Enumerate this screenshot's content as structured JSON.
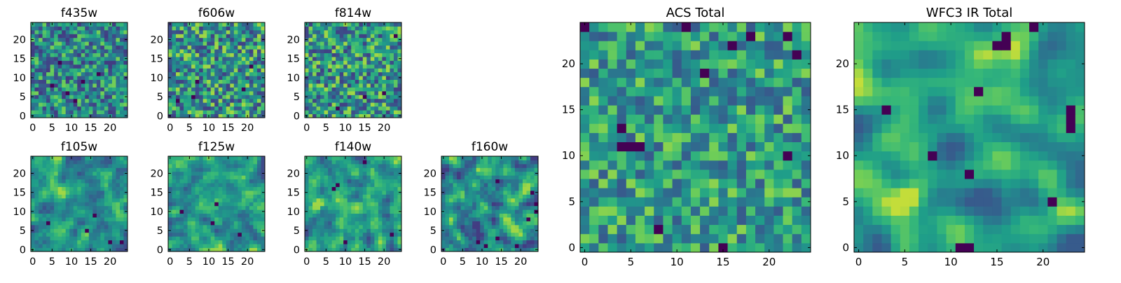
{
  "figure": {
    "colormap": "viridis",
    "background": "#ffffff",
    "axis_color": "#000000"
  },
  "chart_data": [
    {
      "type": "heatmap",
      "title": "f435w",
      "xlim": [
        -0.5,
        24.5
      ],
      "ylim": [
        -0.5,
        24.5
      ],
      "xticks": [
        0,
        5,
        10,
        15,
        20
      ],
      "yticks": [
        0,
        5,
        10,
        15,
        20
      ],
      "grid": false,
      "grid_size": 25,
      "seed": 11,
      "smoothing": 0,
      "contrast": 1.1,
      "lo": 0.2,
      "hi": 0.88,
      "dark_spots": [
        [
          11,
          4
        ],
        [
          9,
          6
        ],
        [
          5,
          8
        ],
        [
          13,
          9
        ],
        [
          7,
          14
        ],
        [
          17,
          11
        ]
      ]
    },
    {
      "type": "heatmap",
      "title": "f606w",
      "xlim": [
        -0.5,
        24.5
      ],
      "ylim": [
        -0.5,
        24.5
      ],
      "xticks": [
        0,
        5,
        10,
        15,
        20
      ],
      "yticks": [
        0,
        5,
        10,
        15,
        20
      ],
      "grid": false,
      "grid_size": 25,
      "seed": 23,
      "smoothing": 0,
      "contrast": 1.15,
      "lo": 0.22,
      "hi": 0.92,
      "dark_spots": [
        [
          6,
          5
        ],
        [
          7,
          9
        ],
        [
          2,
          4
        ],
        [
          19,
          7
        ],
        [
          21,
          13
        ]
      ]
    },
    {
      "type": "heatmap",
      "title": "f814w",
      "xlim": [
        -0.5,
        24.5
      ],
      "ylim": [
        -0.5,
        24.5
      ],
      "xticks": [
        0,
        5,
        10,
        15,
        20
      ],
      "yticks": [
        0,
        5,
        10,
        15,
        20
      ],
      "grid": false,
      "grid_size": 25,
      "seed": 37,
      "smoothing": 0,
      "contrast": 1.15,
      "lo": 0.22,
      "hi": 0.92,
      "dark_spots": [
        [
          23,
          21
        ],
        [
          20,
          6
        ],
        [
          15,
          5
        ],
        [
          8,
          2
        ]
      ]
    },
    {
      "type": "heatmap",
      "title": "f105w",
      "xlim": [
        -0.5,
        24.5
      ],
      "ylim": [
        -0.5,
        24.5
      ],
      "xticks": [
        0,
        5,
        10,
        15,
        20
      ],
      "yticks": [
        0,
        5,
        10,
        15,
        20
      ],
      "grid": false,
      "grid_size": 25,
      "seed": 41,
      "smoothing": 1,
      "contrast": 1.25,
      "lo": 0.25,
      "hi": 0.92,
      "dark_spots": [
        [
          16,
          9
        ],
        [
          20,
          2
        ],
        [
          23,
          2
        ],
        [
          14,
          5
        ],
        [
          4,
          7
        ]
      ]
    },
    {
      "type": "heatmap",
      "title": "f125w",
      "xlim": [
        -0.5,
        24.5
      ],
      "ylim": [
        -0.5,
        24.5
      ],
      "xticks": [
        0,
        5,
        10,
        15,
        20
      ],
      "yticks": [
        0,
        5,
        10,
        15,
        20
      ],
      "grid": false,
      "grid_size": 25,
      "seed": 53,
      "smoothing": 1,
      "contrast": 1.25,
      "lo": 0.25,
      "hi": 0.92,
      "dark_spots": [
        [
          18,
          4
        ],
        [
          11,
          7
        ],
        [
          12,
          12
        ],
        [
          3,
          10
        ]
      ]
    },
    {
      "type": "heatmap",
      "title": "f140w",
      "xlim": [
        -0.5,
        24.5
      ],
      "ylim": [
        -0.5,
        24.5
      ],
      "xticks": [
        0,
        5,
        10,
        15,
        20
      ],
      "yticks": [
        0,
        5,
        10,
        15,
        20
      ],
      "grid": false,
      "grid_size": 25,
      "seed": 67,
      "smoothing": 1,
      "contrast": 1.25,
      "lo": 0.25,
      "hi": 0.92,
      "dark_spots": [
        [
          15,
          23
        ],
        [
          7,
          16
        ],
        [
          8,
          17
        ],
        [
          10,
          2
        ],
        [
          22,
          4
        ]
      ]
    },
    {
      "type": "heatmap",
      "title": "f160w",
      "xlim": [
        -0.5,
        24.5
      ],
      "ylim": [
        -0.5,
        24.5
      ],
      "xticks": [
        0,
        5,
        10,
        15,
        20
      ],
      "yticks": [
        0,
        5,
        10,
        15,
        20
      ],
      "grid": false,
      "grid_size": 25,
      "seed": 79,
      "smoothing": 1,
      "contrast": 1.3,
      "lo": 0.2,
      "hi": 0.92,
      "dark_spots": [
        [
          14,
          18
        ],
        [
          23,
          15
        ],
        [
          24,
          10
        ],
        [
          24,
          12
        ],
        [
          22,
          8
        ],
        [
          9,
          2
        ],
        [
          11,
          1
        ],
        [
          14,
          3
        ],
        [
          19,
          1
        ]
      ]
    },
    {
      "type": "heatmap",
      "title": "ACS Total",
      "xlim": [
        -0.5,
        24.5
      ],
      "ylim": [
        -0.5,
        24.5
      ],
      "xticks": [
        0,
        5,
        10,
        15,
        20
      ],
      "yticks": [
        0,
        5,
        10,
        15,
        20
      ],
      "grid": false,
      "grid_size": 25,
      "seed": 97,
      "smoothing": 0,
      "contrast": 1.1,
      "lo": 0.32,
      "hi": 0.9,
      "dark_spots": [
        [
          0,
          24
        ],
        [
          11,
          24
        ],
        [
          18,
          23
        ],
        [
          16,
          22
        ],
        [
          22,
          23
        ],
        [
          13,
          19
        ],
        [
          23,
          21
        ],
        [
          4,
          13
        ],
        [
          4,
          11
        ],
        [
          5,
          11
        ],
        [
          6,
          11
        ],
        [
          22,
          10
        ],
        [
          8,
          2
        ],
        [
          15,
          0
        ]
      ]
    },
    {
      "type": "heatmap",
      "title": "WFC3 IR Total",
      "xlim": [
        -0.5,
        24.5
      ],
      "ylim": [
        -0.5,
        24.5
      ],
      "xticks": [
        0,
        5,
        10,
        15,
        20
      ],
      "yticks": [
        0,
        5,
        10,
        15,
        20
      ],
      "grid": false,
      "grid_size": 25,
      "seed": 131,
      "smoothing": 2,
      "contrast": 1.35,
      "lo": 0.32,
      "hi": 0.95,
      "dark_spots": [
        [
          15,
          22
        ],
        [
          16,
          22
        ],
        [
          16,
          23
        ],
        [
          19,
          24
        ],
        [
          23,
          15
        ],
        [
          23,
          14
        ],
        [
          23,
          13
        ],
        [
          3,
          15
        ],
        [
          11,
          0
        ],
        [
          12,
          0
        ],
        [
          8,
          10
        ],
        [
          12,
          8
        ],
        [
          21,
          5
        ],
        [
          13,
          17
        ]
      ]
    }
  ]
}
